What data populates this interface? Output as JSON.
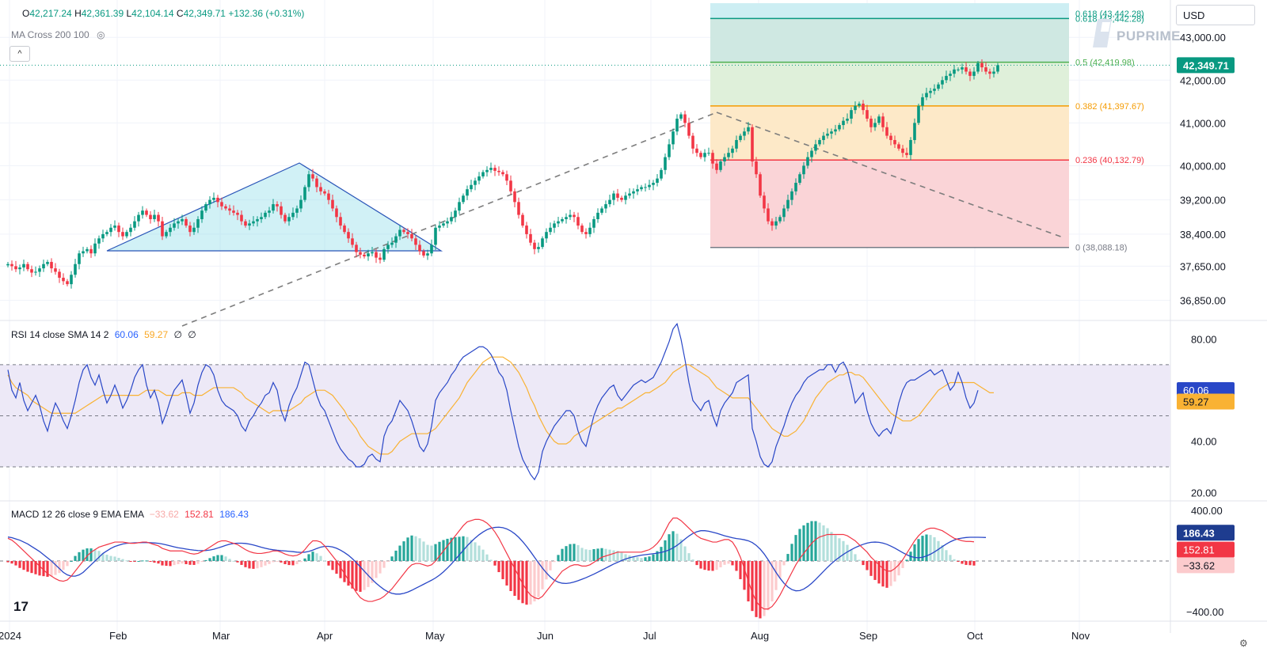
{
  "header": {
    "symbol_icon": "chevron-icon",
    "ohlc": {
      "o_label": "O",
      "o": "42,217.24",
      "h_label": "H",
      "h": "42,361.39",
      "l_label": "L",
      "l": "42,104.14",
      "c_label": "C",
      "c": "42,349.71",
      "change": "+132.36 (+0.31%)"
    },
    "indicator_label": "MA Cross 200 100",
    "hide_icon": "eye-off-icon",
    "collapse_label": "^"
  },
  "currency": "USD",
  "watermark": "PUPRIME",
  "tv_logo": "17",
  "settings_icon": "gear-icon",
  "chart_data": [
    {
      "type": "candlestick",
      "name": "price",
      "x_ticks": [
        "2024",
        "Feb",
        "Mar",
        "Apr",
        "May",
        "Jun",
        "Jul",
        "Aug",
        "Sep",
        "Oct",
        "Nov"
      ],
      "y_ticks": [
        "43,000.00",
        "42,000.00",
        "41,000.00",
        "40,000.00",
        "39,200.00",
        "38,400.00",
        "37,650.00",
        "36,850.00"
      ],
      "ylim": [
        36400,
        43800
      ],
      "last_price": "42,349.71",
      "closes": [
        37700,
        37650,
        37580,
        37620,
        37700,
        37580,
        37500,
        37520,
        37600,
        37700,
        37750,
        37600,
        37520,
        37380,
        37300,
        37230,
        37450,
        37700,
        37950,
        38000,
        38050,
        37950,
        38180,
        38300,
        38400,
        38450,
        38550,
        38600,
        38450,
        38350,
        38450,
        38550,
        38700,
        38850,
        38950,
        38850,
        38750,
        38850,
        38700,
        38350,
        38450,
        38550,
        38650,
        38700,
        38750,
        38600,
        38450,
        38550,
        38750,
        38950,
        39100,
        39200,
        39250,
        39150,
        39050,
        39000,
        38950,
        38900,
        38850,
        38700,
        38600,
        38650,
        38700,
        38750,
        38800,
        38900,
        38950,
        39100,
        39050,
        38850,
        38700,
        38800,
        38900,
        39000,
        39200,
        39500,
        39800,
        39700,
        39500,
        39400,
        39350,
        39200,
        39000,
        38800,
        38600,
        38450,
        38300,
        38150,
        37980,
        37920,
        37880,
        37950,
        37980,
        37850,
        37800,
        38050,
        38150,
        38200,
        38350,
        38500,
        38450,
        38400,
        38300,
        38150,
        38000,
        37900,
        37950,
        38150,
        38550,
        38600,
        38650,
        38700,
        38800,
        38950,
        39150,
        39300,
        39450,
        39550,
        39650,
        39750,
        39850,
        39900,
        39950,
        39880,
        39850,
        39800,
        39650,
        39400,
        39150,
        38850,
        38600,
        38400,
        38200,
        38050,
        38100,
        38300,
        38450,
        38550,
        38650,
        38700,
        38750,
        38800,
        38850,
        38800,
        38600,
        38450,
        38400,
        38550,
        38750,
        38900,
        39000,
        39100,
        39200,
        39350,
        39250,
        39200,
        39300,
        39350,
        39400,
        39450,
        39500,
        39500,
        39550,
        39600,
        39700,
        39900,
        40200,
        40500,
        40800,
        41100,
        41200,
        41000,
        40700,
        40400,
        40300,
        40200,
        40300,
        40300,
        40050,
        39900,
        40100,
        40200,
        40300,
        40400,
        40600,
        40700,
        40800,
        40900,
        40100,
        39800,
        39300,
        39000,
        38700,
        38600,
        38700,
        38800,
        39000,
        39200,
        39400,
        39600,
        39800,
        40000,
        40200,
        40350,
        40500,
        40600,
        40700,
        40750,
        40800,
        40850,
        40950,
        41050,
        41100,
        41300,
        41400,
        41450,
        41300,
        41100,
        40900,
        41000,
        41150,
        40900,
        40700,
        40600,
        40500,
        40400,
        40300,
        40250,
        40600,
        41000,
        41400,
        41600,
        41700,
        41750,
        41800,
        41900,
        42000,
        42100,
        42150,
        42250,
        42250,
        42300,
        42200,
        42100,
        42200,
        42400,
        42300,
        42200,
        42150,
        42200,
        42350
      ]
    },
    {
      "type": "fibonacci_retracement",
      "levels": [
        {
          "ratio": "0.618",
          "value": 43442.28,
          "label": "0.618 (43,442.28)",
          "color": "#089981"
        },
        {
          "ratio": "0.5",
          "value": 42419.98,
          "label": "0.5 (42,419.98)",
          "color": "#4caf50"
        },
        {
          "ratio": "0.382",
          "value": 41397.67,
          "label": "0.382 (41,397.67)",
          "color": "#f59b00"
        },
        {
          "ratio": "0.236",
          "value": 40132.79,
          "label": "0.236 (40,132.79)",
          "color": "#f23645"
        },
        {
          "ratio": "0",
          "value": 38088.18,
          "label": "0 (38,088.18)",
          "color": "#787b86"
        }
      ]
    },
    {
      "type": "line",
      "name": "RSI",
      "legend": {
        "label": "RSI 14 close SMA 14 2",
        "rsi": "60.06",
        "sma": "59.27",
        "e1": "∅",
        "e2": "∅"
      },
      "y_ticks": [
        "80.00",
        "40.00",
        "20.00"
      ],
      "ylim": [
        17,
        87
      ],
      "bands": [
        70,
        50,
        30
      ],
      "last_values": {
        "rsi": "60.06",
        "sma": "59.27"
      },
      "values": [
        68,
        60,
        57,
        63,
        56,
        52,
        55,
        58,
        54,
        48,
        44,
        50,
        55,
        52,
        48,
        45,
        50,
        56,
        63,
        68,
        70,
        65,
        62,
        66,
        60,
        55,
        58,
        62,
        58,
        53,
        56,
        60,
        65,
        68,
        70,
        62,
        57,
        60,
        55,
        47,
        51,
        56,
        60,
        62,
        64,
        58,
        51,
        55,
        62,
        67,
        70,
        69,
        66,
        60,
        56,
        54,
        53,
        52,
        50,
        46,
        44,
        48,
        50,
        53,
        55,
        58,
        59,
        63,
        60,
        52,
        48,
        54,
        58,
        61,
        66,
        71,
        70,
        64,
        58,
        54,
        52,
        48,
        44,
        40,
        37,
        35,
        33,
        32,
        30,
        30,
        31,
        34,
        35,
        33,
        32,
        42,
        46,
        48,
        52,
        56,
        54,
        52,
        48,
        43,
        38,
        36,
        39,
        46,
        56,
        59,
        61,
        63,
        66,
        68,
        71,
        73,
        74,
        75,
        76,
        77,
        77,
        76,
        74,
        71,
        67,
        65,
        60,
        52,
        45,
        38,
        33,
        30,
        27,
        25,
        28,
        36,
        40,
        43,
        46,
        48,
        50,
        52,
        52,
        50,
        44,
        40,
        38,
        44,
        50,
        54,
        57,
        59,
        61,
        62,
        58,
        56,
        58,
        60,
        62,
        63,
        64,
        63,
        64,
        65,
        68,
        71,
        75,
        79,
        84,
        86,
        80,
        72,
        63,
        56,
        54,
        52,
        55,
        56,
        50,
        46,
        52,
        55,
        57,
        59,
        63,
        64,
        65,
        66,
        45,
        40,
        34,
        31,
        30,
        32,
        38,
        42,
        46,
        51,
        55,
        58,
        60,
        63,
        65,
        66,
        67,
        68,
        68,
        70,
        70,
        67,
        70,
        71,
        68,
        62,
        55,
        57,
        59,
        52,
        47,
        44,
        42,
        44,
        45,
        43,
        48,
        55,
        60,
        63,
        64,
        64,
        65,
        66,
        67,
        68,
        66,
        67,
        68,
        64,
        60,
        62,
        67,
        63,
        57,
        53,
        55,
        60
      ]
    },
    {
      "type": "line",
      "name": "RSI SMA",
      "values": [
        66,
        63,
        61,
        60,
        59,
        58,
        56,
        55,
        54,
        53,
        52,
        51,
        51,
        51,
        51,
        51,
        51,
        51,
        52,
        53,
        54,
        55,
        56,
        57,
        58,
        58,
        58,
        58,
        58,
        58,
        58,
        58,
        58,
        58,
        59,
        60,
        60,
        60,
        60,
        59,
        58,
        58,
        58,
        58,
        59,
        59,
        59,
        58,
        58,
        58,
        59,
        60,
        61,
        61,
        61,
        61,
        61,
        61,
        60,
        59,
        57,
        56,
        55,
        54,
        53,
        52,
        51,
        52,
        52,
        52,
        52,
        52,
        53,
        54,
        55,
        57,
        58,
        59,
        60,
        60,
        60,
        59,
        58,
        56,
        54,
        52,
        49,
        47,
        45,
        42,
        40,
        38,
        37,
        36,
        35,
        35,
        35,
        36,
        38,
        40,
        41,
        42,
        43,
        43,
        43,
        43,
        43,
        44,
        45,
        47,
        49,
        51,
        53,
        55,
        57,
        60,
        63,
        65,
        67,
        69,
        71,
        72,
        73,
        73,
        73,
        73,
        72,
        71,
        69,
        67,
        64,
        61,
        57,
        54,
        50,
        47,
        44,
        42,
        40,
        39,
        39,
        39,
        40,
        42,
        43,
        44,
        45,
        46,
        47,
        48,
        49,
        50,
        51,
        52,
        53,
        53,
        54,
        55,
        56,
        57,
        58,
        59,
        59,
        60,
        61,
        62,
        63,
        65,
        67,
        68,
        69,
        70,
        70,
        69,
        68,
        67,
        66,
        65,
        63,
        61,
        60,
        59,
        58,
        57,
        57,
        57,
        57,
        57,
        55,
        53,
        51,
        49,
        47,
        45,
        44,
        43,
        42,
        42,
        43,
        44,
        46,
        48,
        51,
        54,
        57,
        59,
        61,
        63,
        64,
        65,
        66,
        66,
        67,
        67,
        66,
        66,
        65,
        63,
        61,
        59,
        57,
        55,
        53,
        51,
        50,
        49,
        48,
        48,
        48,
        49,
        50,
        52,
        54,
        56,
        58,
        60,
        61,
        62,
        63,
        63,
        63,
        63,
        63,
        63,
        63,
        62,
        61,
        60,
        59,
        59
      ]
    },
    {
      "type": "bar+line",
      "name": "MACD",
      "legend": {
        "label": "MACD 12 26 close 9 EMA EMA",
        "hist": "−33.62",
        "macd": "152.81",
        "signal": "186.43"
      },
      "y_ticks": [
        "400.00",
        "−400.00"
      ],
      "ylim": [
        -470,
        470
      ],
      "last_values": {
        "signal": "186.43",
        "macd": "152.81",
        "hist": "−33.62"
      },
      "macd": [
        180,
        165,
        140,
        110,
        80,
        50,
        20,
        -10,
        -40,
        -70,
        -100,
        -120,
        -140,
        -155,
        -160,
        -150,
        -120,
        -80,
        -40,
        0,
        40,
        70,
        90,
        110,
        120,
        130,
        140,
        150,
        150,
        150,
        145,
        140,
        140,
        145,
        150,
        150,
        140,
        130,
        120,
        100,
        90,
        80,
        80,
        80,
        80,
        70,
        60,
        55,
        60,
        75,
        90,
        110,
        130,
        150,
        160,
        160,
        150,
        140,
        130,
        110,
        90,
        75,
        65,
        60,
        60,
        65,
        70,
        80,
        80,
        70,
        55,
        45,
        40,
        45,
        60,
        90,
        130,
        160,
        160,
        150,
        120,
        80,
        40,
        0,
        -50,
        -100,
        -150,
        -200,
        -250,
        -290,
        -310,
        -320,
        -320,
        -310,
        -300,
        -280,
        -250,
        -220,
        -180,
        -140,
        -100,
        -60,
        -30,
        -20,
        -20,
        -30,
        -40,
        -30,
        0,
        40,
        80,
        120,
        160,
        200,
        240,
        280,
        310,
        320,
        330,
        330,
        320,
        300,
        270,
        230,
        180,
        120,
        60,
        0,
        -60,
        -120,
        -180,
        -230,
        -270,
        -290,
        -300,
        -280,
        -240,
        -200,
        -160,
        -120,
        -80,
        -60,
        -40,
        -30,
        -30,
        -40,
        -40,
        -30,
        -10,
        10,
        30,
        40,
        50,
        60,
        70,
        70,
        70,
        70,
        70,
        70,
        70,
        80,
        90,
        110,
        140,
        180,
        240,
        300,
        340,
        340,
        320,
        290,
        260,
        230,
        200,
        180,
        170,
        160,
        150,
        150,
        160,
        170,
        170,
        150,
        100,
        30,
        -60,
        -160,
        -250,
        -320,
        -360,
        -380,
        -380,
        -360,
        -320,
        -270,
        -210,
        -150,
        -90,
        -30,
        20,
        60,
        100,
        140,
        170,
        190,
        200,
        210,
        210,
        210,
        210,
        210,
        200,
        180,
        160,
        130,
        100,
        70,
        30,
        0,
        -30,
        -60,
        -80,
        -80,
        -60,
        -30,
        10,
        60,
        110,
        160,
        200,
        230,
        250,
        260,
        260,
        250,
        240,
        220,
        200,
        180,
        170,
        160,
        155,
        155,
        152
      ]
    },
    {
      "type": "line",
      "name": "MACD signal",
      "values": [
        190,
        185,
        175,
        165,
        150,
        135,
        115,
        95,
        75,
        50,
        25,
        0,
        -30,
        -60,
        -90,
        -110,
        -120,
        -120,
        -110,
        -90,
        -60,
        -30,
        0,
        30,
        60,
        80,
        100,
        115,
        125,
        135,
        140,
        142,
        144,
        145,
        146,
        146,
        145,
        143,
        140,
        135,
        128,
        120,
        112,
        105,
        100,
        95,
        90,
        86,
        83,
        82,
        83,
        87,
        93,
        103,
        113,
        124,
        133,
        139,
        141,
        141,
        139,
        134,
        127,
        118,
        109,
        101,
        94,
        89,
        85,
        82,
        80,
        77,
        74,
        70,
        68,
        70,
        76,
        86,
        99,
        110,
        116,
        116,
        111,
        101,
        86,
        67,
        45,
        18,
        -13,
        -46,
        -80,
        -114,
        -146,
        -176,
        -202,
        -226,
        -244,
        -256,
        -262,
        -262,
        -256,
        -246,
        -232,
        -216,
        -200,
        -184,
        -168,
        -152,
        -134,
        -112,
        -86,
        -56,
        -24,
        12,
        48,
        84,
        120,
        152,
        182,
        208,
        230,
        248,
        260,
        266,
        268,
        264,
        254,
        238,
        216,
        188,
        154,
        116,
        74,
        30,
        -14,
        -56,
        -94,
        -126,
        -152,
        -168,
        -176,
        -178,
        -174,
        -166,
        -156,
        -144,
        -132,
        -118,
        -104,
        -88,
        -72,
        -56,
        -40,
        -24,
        -10,
        4,
        16,
        26,
        34,
        40,
        46,
        50,
        54,
        58,
        62,
        68,
        76,
        88,
        104,
        124,
        148,
        174,
        198,
        218,
        232,
        240,
        240,
        236,
        228,
        220,
        210,
        200,
        192,
        184,
        178,
        174,
        168,
        160,
        146,
        124,
        94,
        56,
        10,
        -40,
        -90,
        -136,
        -176,
        -206,
        -226,
        -236,
        -234,
        -222,
        -202,
        -176,
        -146,
        -114,
        -82,
        -50,
        -20,
        6,
        30,
        52,
        72,
        90,
        106,
        120,
        132,
        142,
        148,
        150,
        148,
        142,
        132,
        118,
        102,
        84,
        66,
        50,
        36,
        28,
        26,
        30,
        40,
        54,
        72,
        92,
        114,
        134,
        152,
        166,
        176,
        182,
        186,
        188,
        188,
        188,
        187,
        186
      ]
    }
  ]
}
